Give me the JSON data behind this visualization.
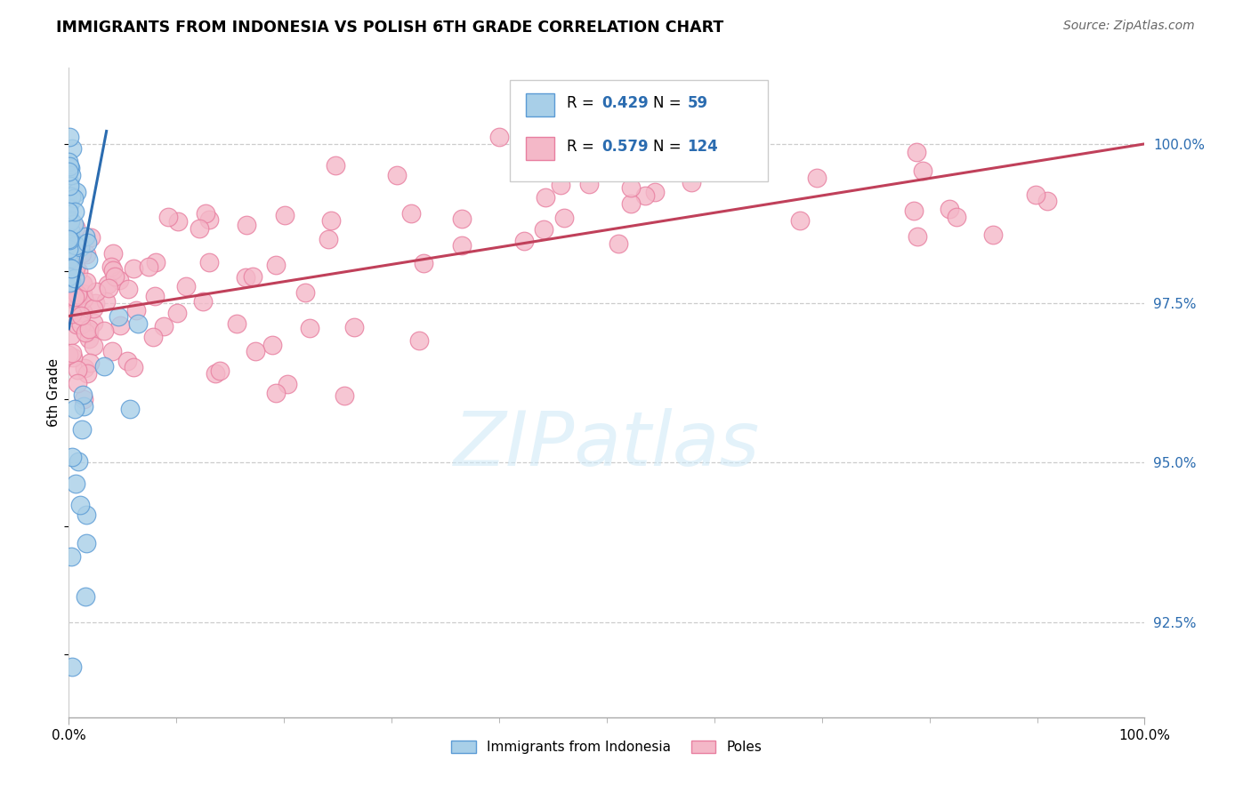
{
  "title": "IMMIGRANTS FROM INDONESIA VS POLISH 6TH GRADE CORRELATION CHART",
  "source": "Source: ZipAtlas.com",
  "ylabel": "6th Grade",
  "xmin": 0.0,
  "xmax": 100.0,
  "ymin": 91.0,
  "ymax": 101.2,
  "ytick_values": [
    92.5,
    95.0,
    97.5,
    100.0
  ],
  "legend_blue_label": "Immigrants from Indonesia",
  "legend_pink_label": "Poles",
  "R_blue": 0.429,
  "N_blue": 59,
  "R_pink": 0.579,
  "N_pink": 124,
  "blue_fill": "#a8cfe8",
  "blue_edge": "#5b9bd5",
  "pink_fill": "#f4b8c8",
  "pink_edge": "#e87fa0",
  "trend_blue": "#2b6cb0",
  "trend_pink": "#c0405a",
  "right_tick_color": "#2b6cb0",
  "watermark_color": "#cde8f7"
}
